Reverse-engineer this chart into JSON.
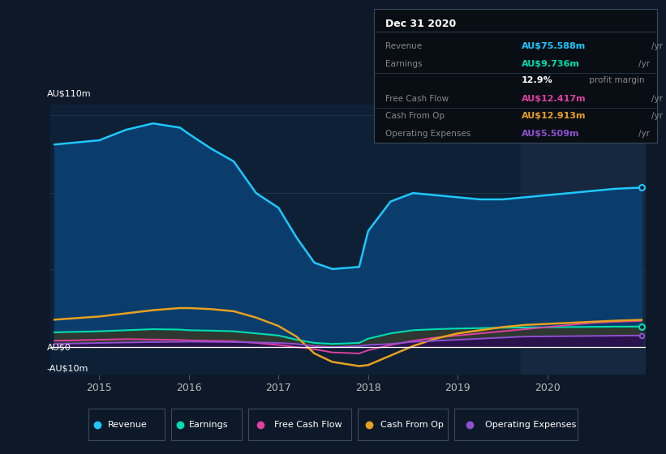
{
  "bg_color": "#0d1929",
  "plot_bg_color": "#0d2035",
  "highlight_bg": "#162840",
  "grid_color": "#1e3550",
  "years_x": [
    2014.5,
    2015.0,
    2015.3,
    2015.6,
    2015.9,
    2016.0,
    2016.25,
    2016.5,
    2016.75,
    2017.0,
    2017.2,
    2017.4,
    2017.6,
    2017.9,
    2018.0,
    2018.25,
    2018.5,
    2018.75,
    2019.0,
    2019.25,
    2019.5,
    2019.75,
    2020.0,
    2020.25,
    2020.5,
    2020.75,
    2021.05
  ],
  "revenue": [
    96,
    98,
    103,
    106,
    104,
    101,
    94,
    88,
    73,
    66,
    52,
    40,
    37,
    38,
    55,
    69,
    73,
    72,
    71,
    70,
    70,
    71,
    72,
    73,
    74,
    75,
    75.6
  ],
  "earnings": [
    7,
    7.5,
    8,
    8.5,
    8.3,
    8.0,
    7.8,
    7.5,
    6.5,
    5.5,
    3.5,
    2.0,
    1.5,
    2.0,
    4.0,
    6.5,
    8.0,
    8.5,
    8.8,
    9.0,
    9.2,
    9.3,
    9.4,
    9.5,
    9.6,
    9.7,
    9.736
  ],
  "free_cash_flow": [
    3.0,
    3.5,
    3.8,
    3.6,
    3.4,
    3.2,
    3.0,
    2.8,
    2.0,
    1.0,
    0.0,
    -1.0,
    -2.5,
    -3.0,
    -1.5,
    1.0,
    3.0,
    4.5,
    5.5,
    6.5,
    7.5,
    8.5,
    9.5,
    10.5,
    11.5,
    12.0,
    12.417
  ],
  "cash_from_op": [
    13,
    14.5,
    16,
    17.5,
    18.5,
    18.5,
    18.0,
    17.0,
    14.0,
    10.0,
    5.0,
    -3.0,
    -7.0,
    -9.0,
    -8.5,
    -4.0,
    0.5,
    4.0,
    6.5,
    8.0,
    9.5,
    10.5,
    11.0,
    11.5,
    12.0,
    12.5,
    12.913
  ],
  "operating_expenses": [
    1.5,
    2.0,
    2.2,
    2.4,
    2.5,
    2.6,
    2.5,
    2.4,
    2.2,
    2.0,
    1.5,
    0.5,
    0.0,
    0.5,
    1.0,
    1.5,
    2.5,
    3.0,
    3.5,
    4.0,
    4.5,
    5.0,
    5.1,
    5.2,
    5.3,
    5.4,
    5.509
  ],
  "revenue_color": "#1ec8ff",
  "revenue_fill": "#0a3d6b",
  "earnings_color": "#00ddb0",
  "earnings_fill": "#2a3530",
  "free_cash_flow_color": "#e040a0",
  "cash_from_op_color": "#e8a020",
  "operating_expenses_color": "#9050d0",
  "operating_expenses_fill": "#3a1060",
  "ylim_min": -13,
  "ylim_max": 115,
  "xlim_min": 2014.45,
  "xlim_max": 2021.1,
  "highlight_start": 2019.7,
  "xticks": [
    2015,
    2016,
    2017,
    2018,
    2019,
    2020
  ],
  "grid_yticks": [
    0,
    37,
    73,
    110
  ],
  "info_box": {
    "title": "Dec 31 2020",
    "rows": [
      {
        "label": "Revenue",
        "value": "AU$75.588m",
        "unit": "/yr",
        "color": "#1ec8ff"
      },
      {
        "label": "Earnings",
        "value": "AU$9.736m",
        "unit": "/yr",
        "color": "#00ddb0"
      },
      {
        "label": "",
        "value": "12.9%",
        "unit": " profit margin",
        "color": "#ffffff"
      },
      {
        "label": "Free Cash Flow",
        "value": "AU$12.417m",
        "unit": "/yr",
        "color": "#e040a0"
      },
      {
        "label": "Cash From Op",
        "value": "AU$12.913m",
        "unit": "/yr",
        "color": "#e8a020"
      },
      {
        "label": "Operating Expenses",
        "value": "AU$5.509m",
        "unit": "/yr",
        "color": "#9050d0"
      }
    ]
  },
  "legend": [
    {
      "label": "Revenue",
      "color": "#1ec8ff"
    },
    {
      "label": "Earnings",
      "color": "#00ddb0"
    },
    {
      "label": "Free Cash Flow",
      "color": "#e040a0"
    },
    {
      "label": "Cash From Op",
      "color": "#e8a020"
    },
    {
      "label": "Operating Expenses",
      "color": "#9050d0"
    }
  ]
}
